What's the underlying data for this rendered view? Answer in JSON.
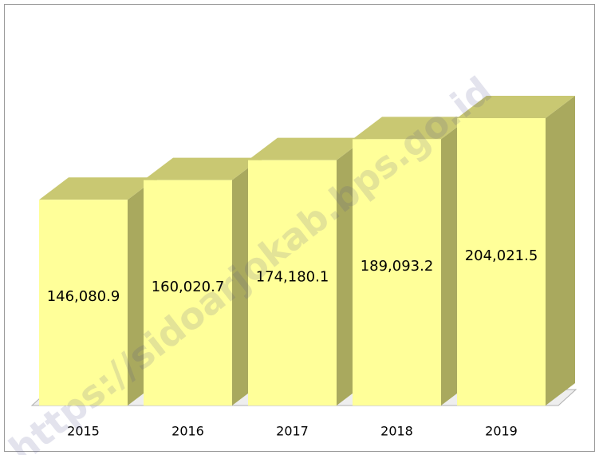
{
  "chart_data": {
    "type": "bar",
    "categories": [
      "2015",
      "2016",
      "2017",
      "2018",
      "2019"
    ],
    "values": [
      146080.9,
      160020.7,
      174180.1,
      189093.2,
      204021.5
    ],
    "value_labels": [
      "146,080.9",
      "160,020.7",
      "174,180.1",
      "189,093.2",
      "204,021.5"
    ],
    "color": "#ffff99",
    "watermark": "https://sidoarjokab.bps.go.id"
  }
}
